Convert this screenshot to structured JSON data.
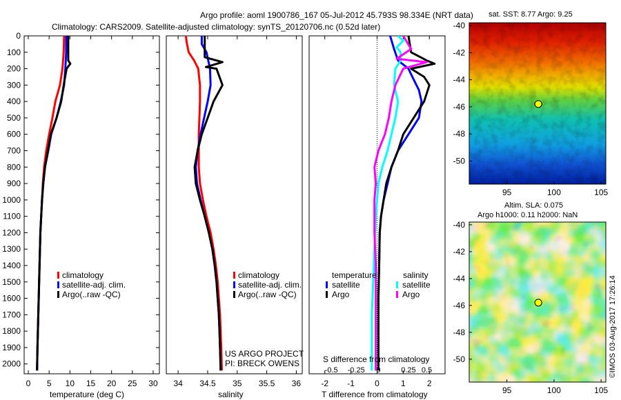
{
  "header": {
    "line1": "Argo profile: aoml 1900786_167 05-Jul-2012 45.793S 98.334E (NRT data)",
    "line2": "Climatology: CARS2009. Satellite-adjusted climatology: synTS_20120706.nc (0.52d later)"
  },
  "project": {
    "line1": "US ARGO PROJECT",
    "line2": "PI: BRECK OWENS"
  },
  "copyright": "©IMOS 03-Aug-2017 17:26:14",
  "colors": {
    "climatology": "#ff0000",
    "satellite": "#0000ff",
    "argo": "#000000",
    "sal_satellite": "#00ffff",
    "sal_argo": "#ff00ff"
  },
  "chart_data": [
    {
      "type": "line",
      "xlabel": "temperature (deg C)",
      "ylabel": "",
      "xlim": [
        -1,
        31.5
      ],
      "ylim": [
        0,
        2060
      ],
      "y_reversed": true,
      "xticks": [
        0,
        5,
        10,
        15,
        20,
        25,
        30
      ],
      "yticks": [
        0,
        100,
        200,
        300,
        400,
        500,
        600,
        700,
        800,
        900,
        1000,
        1100,
        1200,
        1300,
        1400,
        1500,
        1600,
        1700,
        1800,
        1900,
        2000
      ],
      "legend": [
        "climatology",
        "satellite-adj. clim.",
        "Argo(..raw -QC)"
      ],
      "series": [
        {
          "name": "climatology",
          "color": "#ff0000",
          "points": [
            [
              8.6,
              0
            ],
            [
              8.5,
              100
            ],
            [
              8.2,
              200
            ],
            [
              7.6,
              300
            ],
            [
              6.5,
              400
            ],
            [
              5.8,
              500
            ],
            [
              5.0,
              600
            ],
            [
              4.3,
              700
            ],
            [
              3.8,
              800
            ],
            [
              3.5,
              900
            ],
            [
              3.3,
              1000
            ],
            [
              3.1,
              1100
            ],
            [
              2.9,
              1200
            ],
            [
              2.8,
              1300
            ],
            [
              2.7,
              1400
            ],
            [
              2.6,
              1500
            ],
            [
              2.5,
              1600
            ],
            [
              2.4,
              1700
            ],
            [
              2.3,
              1800
            ],
            [
              2.2,
              1900
            ],
            [
              2.1,
              2040
            ]
          ]
        },
        {
          "name": "satellite-adj. clim.",
          "color": "#0000ff",
          "points": [
            [
              9.1,
              0
            ],
            [
              9.1,
              100
            ],
            [
              9.0,
              150
            ],
            [
              8.9,
              200
            ],
            [
              8.6,
              300
            ],
            [
              7.8,
              400
            ],
            [
              6.8,
              500
            ],
            [
              5.5,
              600
            ],
            [
              4.8,
              700
            ],
            [
              4.0,
              800
            ],
            [
              3.6,
              900
            ],
            [
              3.3,
              1000
            ],
            [
              3.1,
              1100
            ],
            [
              2.9,
              1200
            ],
            [
              2.8,
              1300
            ],
            [
              2.7,
              1400
            ],
            [
              2.6,
              1500
            ],
            [
              2.5,
              1600
            ],
            [
              2.4,
              1700
            ],
            [
              2.3,
              1800
            ],
            [
              2.2,
              1900
            ],
            [
              2.1,
              2040
            ]
          ]
        },
        {
          "name": "Argo(..raw -QC)",
          "color": "#000000",
          "points": [
            [
              9.6,
              0
            ],
            [
              9.6,
              150
            ],
            [
              10.1,
              170
            ],
            [
              9.2,
              200
            ],
            [
              8.5,
              300
            ],
            [
              7.9,
              400
            ],
            [
              6.8,
              500
            ],
            [
              5.4,
              600
            ],
            [
              4.7,
              700
            ],
            [
              4.0,
              800
            ],
            [
              3.6,
              900
            ],
            [
              3.3,
              1000
            ],
            [
              3.1,
              1100
            ],
            [
              2.9,
              1200
            ],
            [
              2.8,
              1300
            ],
            [
              2.7,
              1400
            ],
            [
              2.6,
              1500
            ],
            [
              2.5,
              1600
            ],
            [
              2.4,
              1700
            ],
            [
              2.3,
              1800
            ],
            [
              2.2,
              1900
            ],
            [
              2.1,
              2040
            ]
          ]
        }
      ]
    },
    {
      "type": "line",
      "xlabel": "salinity",
      "ylabel": "",
      "xlim": [
        33.8,
        36.1
      ],
      "ylim": [
        0,
        2060
      ],
      "y_reversed": true,
      "xticks": [
        34,
        34.5,
        35,
        35.5,
        36
      ],
      "legend": [
        "climatology",
        "satellite-adj. clim.",
        "Argo(..raw -QC)"
      ],
      "series": [
        {
          "name": "climatology",
          "color": "#ff0000",
          "points": [
            [
              34.13,
              0
            ],
            [
              34.15,
              50
            ],
            [
              34.18,
              100
            ],
            [
              34.27,
              150
            ],
            [
              34.34,
              200
            ],
            [
              34.37,
              300
            ],
            [
              34.37,
              400
            ],
            [
              34.36,
              500
            ],
            [
              34.35,
              600
            ],
            [
              34.35,
              700
            ],
            [
              34.35,
              800
            ],
            [
              34.37,
              900
            ],
            [
              34.42,
              1000
            ],
            [
              34.48,
              1100
            ],
            [
              34.55,
              1200
            ],
            [
              34.6,
              1300
            ],
            [
              34.64,
              1400
            ],
            [
              34.67,
              1500
            ],
            [
              34.69,
              1600
            ],
            [
              34.71,
              1700
            ],
            [
              34.72,
              1800
            ],
            [
              34.73,
              1900
            ],
            [
              34.74,
              2040
            ]
          ]
        },
        {
          "name": "satellite-adj. clim.",
          "color": "#0000ff",
          "points": [
            [
              34.4,
              0
            ],
            [
              34.4,
              50
            ],
            [
              34.48,
              100
            ],
            [
              34.54,
              200
            ],
            [
              34.55,
              300
            ],
            [
              34.5,
              400
            ],
            [
              34.44,
              500
            ],
            [
              34.38,
              600
            ],
            [
              34.33,
              700
            ],
            [
              34.3,
              800
            ],
            [
              34.32,
              900
            ],
            [
              34.38,
              1000
            ],
            [
              34.45,
              1100
            ],
            [
              34.52,
              1200
            ],
            [
              34.58,
              1300
            ],
            [
              34.62,
              1400
            ],
            [
              34.65,
              1500
            ],
            [
              34.67,
              1600
            ],
            [
              34.69,
              1700
            ],
            [
              34.7,
              1800
            ],
            [
              34.71,
              1900
            ],
            [
              34.72,
              2040
            ]
          ]
        },
        {
          "name": "Argo(..raw -QC)",
          "color": "#000000",
          "points": [
            [
              34.45,
              0
            ],
            [
              34.45,
              130
            ],
            [
              34.75,
              160
            ],
            [
              34.47,
              190
            ],
            [
              34.65,
              200
            ],
            [
              34.75,
              300
            ],
            [
              34.6,
              400
            ],
            [
              34.5,
              500
            ],
            [
              34.4,
              600
            ],
            [
              34.33,
              700
            ],
            [
              34.28,
              800
            ],
            [
              34.3,
              900
            ],
            [
              34.37,
              1000
            ],
            [
              34.45,
              1100
            ],
            [
              34.52,
              1200
            ],
            [
              34.58,
              1300
            ],
            [
              34.62,
              1400
            ],
            [
              34.65,
              1500
            ],
            [
              34.67,
              1600
            ],
            [
              34.69,
              1700
            ],
            [
              34.7,
              1800
            ],
            [
              34.71,
              1900
            ],
            [
              34.72,
              2040
            ]
          ]
        }
      ]
    },
    {
      "type": "line",
      "xlabel": "T difference from climatology",
      "xlabel_top": "S difference from climatology",
      "xlim": [
        -2.6,
        2.6
      ],
      "ylim": [
        0,
        2060
      ],
      "y_reversed": true,
      "xticks": [
        -2,
        -1,
        0,
        1,
        2
      ],
      "xticks_s": [
        "-0.5",
        "-0.25",
        "0",
        "0.25",
        "0.5"
      ],
      "legend_temperature_title": "temperature",
      "legend_salinity_title": "salinity",
      "legend_temperature": [
        "satellite",
        "Argo"
      ],
      "legend_salinity": [
        "satellite",
        "Argo"
      ],
      "series": [
        {
          "name": "temperature satellite",
          "color": "#0000ff",
          "points": [
            [
              0.5,
              0
            ],
            [
              0.65,
              80
            ],
            [
              0.8,
              150
            ],
            [
              1.2,
              200
            ],
            [
              1.35,
              250
            ],
            [
              1.6,
              330
            ],
            [
              1.7,
              400
            ],
            [
              1.6,
              500
            ],
            [
              1.2,
              600
            ],
            [
              0.8,
              700
            ],
            [
              0.55,
              800
            ],
            [
              0.4,
              900
            ],
            [
              0.25,
              1000
            ],
            [
              0.15,
              1100
            ],
            [
              0.1,
              1200
            ],
            [
              0.08,
              1400
            ],
            [
              0.05,
              1600
            ],
            [
              0.05,
              2040
            ]
          ]
        },
        {
          "name": "temperature Argo",
          "color": "#000000",
          "points": [
            [
              1.2,
              0
            ],
            [
              1.3,
              100
            ],
            [
              1.9,
              150
            ],
            [
              2.2,
              170
            ],
            [
              1.3,
              200
            ],
            [
              1.8,
              250
            ],
            [
              2.0,
              300
            ],
            [
              1.8,
              400
            ],
            [
              1.4,
              500
            ],
            [
              1.0,
              600
            ],
            [
              0.8,
              700
            ],
            [
              0.55,
              800
            ],
            [
              0.35,
              900
            ],
            [
              0.25,
              1000
            ],
            [
              0.15,
              1100
            ],
            [
              0.1,
              1200
            ],
            [
              0.08,
              1400
            ],
            [
              0.05,
              1600
            ],
            [
              0.05,
              2040
            ]
          ]
        },
        {
          "name": "salinity satellite",
          "color": "#00ffff",
          "points": [
            [
              0.8,
              0
            ],
            [
              1.0,
              30
            ],
            [
              0.75,
              70
            ],
            [
              0.9,
              100
            ],
            [
              0.9,
              150
            ],
            [
              0.7,
              200
            ],
            [
              0.65,
              300
            ],
            [
              0.8,
              400
            ],
            [
              0.7,
              500
            ],
            [
              0.55,
              600
            ],
            [
              0.4,
              700
            ],
            [
              0.2,
              800
            ],
            [
              0.05,
              900
            ],
            [
              0.0,
              1000
            ],
            [
              -0.05,
              1100
            ],
            [
              -0.1,
              1300
            ],
            [
              -0.15,
              1500
            ],
            [
              -0.2,
              1700
            ],
            [
              -0.2,
              2040
            ]
          ]
        },
        {
          "name": "salinity Argo",
          "color": "#ff00ff",
          "points": [
            [
              1.0,
              0
            ],
            [
              1.3,
              80
            ],
            [
              0.75,
              140
            ],
            [
              1.9,
              160
            ],
            [
              1.0,
              200
            ],
            [
              0.7,
              300
            ],
            [
              0.55,
              400
            ],
            [
              0.45,
              500
            ],
            [
              0.3,
              600
            ],
            [
              0.05,
              700
            ],
            [
              -0.1,
              800
            ],
            [
              -0.05,
              900
            ],
            [
              -0.1,
              1000
            ],
            [
              -0.1,
              1200
            ],
            [
              -0.05,
              1400
            ],
            [
              -0.05,
              2040
            ]
          ]
        }
      ]
    },
    {
      "type": "heatmap",
      "title": "sat. SST: 8.77 Argo: 9.25",
      "xlim": [
        91,
        105.5
      ],
      "ylim": [
        -51.7,
        -39.8
      ],
      "xticks": [
        95,
        100,
        105
      ],
      "yticks": [
        -40,
        -42,
        -44,
        -46,
        -48,
        -50
      ],
      "marker": {
        "lon": 98.334,
        "lat": -45.793
      }
    },
    {
      "type": "heatmap",
      "title": "Altim. SLA: 0.075",
      "subtitle": "Argo h1000: 0.11 h2000: NaN",
      "xlim": [
        91,
        105.5
      ],
      "ylim": [
        -51.7,
        -39.8
      ],
      "xticks": [
        95,
        100,
        105
      ],
      "yticks": [
        -40,
        -42,
        -44,
        -46,
        -48,
        -50
      ],
      "marker": {
        "lon": 98.334,
        "lat": -45.793
      }
    }
  ]
}
